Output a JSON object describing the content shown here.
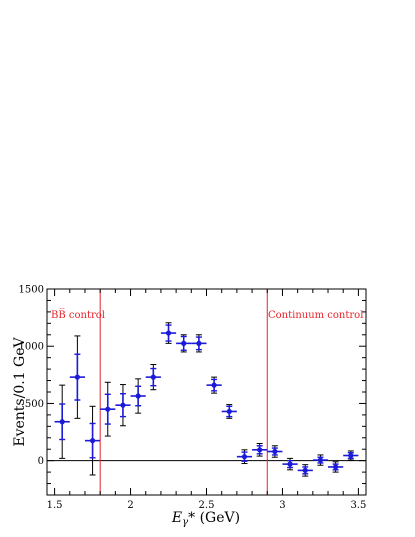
{
  "chart_data": {
    "type": "scatter",
    "xlabel_main": "E",
    "xlabel_sub": "γ",
    "xlabel_tail": "* (GeV)",
    "ylabel": "Events/0.1 GeV",
    "xlim": [
      1.45,
      3.55
    ],
    "ylim": [
      -300,
      1500
    ],
    "x_ticks": [
      1.5,
      2,
      2.5,
      3,
      3.5
    ],
    "x_tick_labels": [
      "1.5",
      "2",
      "2.5",
      "3",
      "3.5"
    ],
    "y_ticks": [
      0,
      500,
      1000,
      1500
    ],
    "y_tick_labels": [
      "0",
      "500",
      "1000",
      "1500"
    ],
    "zero_line": 0,
    "control_lines": [
      1.8,
      2.9
    ],
    "annotations": {
      "bb_control": "BB̅ control",
      "continuum_control": "Continuum control"
    },
    "colors": {
      "points": "#1a1ad8",
      "outer_errors": "#000000",
      "control_lines": "#e8212a",
      "annotations": "#e8212a"
    },
    "series": [
      {
        "bin_half_width": 0.05,
        "points": [
          {
            "x": 1.55,
            "y": 340,
            "stat": 155,
            "total": 320
          },
          {
            "x": 1.65,
            "y": 730,
            "stat": 200,
            "total": 360
          },
          {
            "x": 1.75,
            "y": 175,
            "stat": 150,
            "total": 300
          },
          {
            "x": 1.85,
            "y": 450,
            "stat": 130,
            "total": 235
          },
          {
            "x": 1.95,
            "y": 485,
            "stat": 100,
            "total": 180
          },
          {
            "x": 2.05,
            "y": 565,
            "stat": 85,
            "total": 150
          },
          {
            "x": 2.15,
            "y": 730,
            "stat": 75,
            "total": 110
          },
          {
            "x": 2.25,
            "y": 1115,
            "stat": 70,
            "total": 90
          },
          {
            "x": 2.35,
            "y": 1025,
            "stat": 60,
            "total": 75
          },
          {
            "x": 2.45,
            "y": 1025,
            "stat": 55,
            "total": 75
          },
          {
            "x": 2.55,
            "y": 660,
            "stat": 50,
            "total": 70
          },
          {
            "x": 2.65,
            "y": 430,
            "stat": 45,
            "total": 60
          },
          {
            "x": 2.75,
            "y": 35,
            "stat": 40,
            "total": 60
          },
          {
            "x": 2.85,
            "y": 95,
            "stat": 35,
            "total": 55
          },
          {
            "x": 2.95,
            "y": 80,
            "stat": 30,
            "total": 50
          },
          {
            "x": 3.05,
            "y": -30,
            "stat": 30,
            "total": 50
          },
          {
            "x": 3.15,
            "y": -85,
            "stat": 30,
            "total": 50
          },
          {
            "x": 3.25,
            "y": 5,
            "stat": 25,
            "total": 45
          },
          {
            "x": 3.35,
            "y": -55,
            "stat": 25,
            "total": 45
          },
          {
            "x": 3.45,
            "y": 45,
            "stat": 25,
            "total": 40
          }
        ]
      }
    ]
  }
}
